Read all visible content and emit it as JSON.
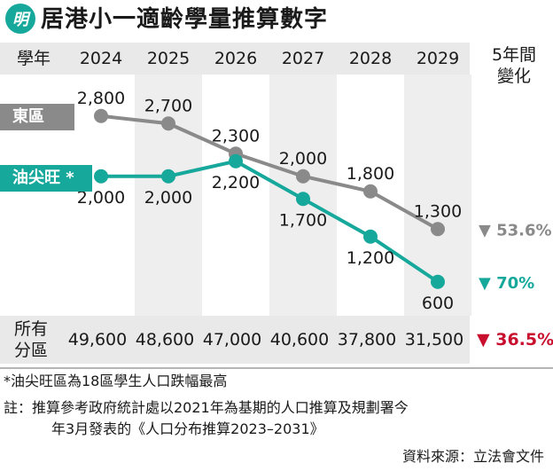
{
  "logo_text": "明",
  "title": "居港小一適齡學量推算數字",
  "header": {
    "row_label": "學年",
    "years": [
      "2024",
      "2025",
      "2026",
      "2027",
      "2028",
      "2029"
    ],
    "change_label": "5年間\n變化"
  },
  "chart_data": {
    "type": "line",
    "categories": [
      "2024",
      "2025",
      "2026",
      "2027",
      "2028",
      "2029"
    ],
    "ylim": [
      0,
      3000
    ],
    "series": [
      {
        "name": "東區",
        "color": "#8a8a8a",
        "values": [
          2800,
          2700,
          2300,
          2000,
          1800,
          1300
        ],
        "labels": [
          "2,800",
          "2,700",
          "2,300",
          "2,000",
          "1,800",
          "1,300"
        ],
        "label_pos": [
          "above",
          "above",
          "above",
          "above",
          "above",
          "above"
        ],
        "change": "▼ 53.6%"
      },
      {
        "name": "油尖旺 *",
        "color": "#17a89c",
        "values": [
          2000,
          2000,
          2200,
          1700,
          1200,
          600
        ],
        "labels": [
          "2,000",
          "2,000",
          "2,200",
          "1,700",
          "1,200",
          "600"
        ],
        "label_pos": [
          "below",
          "below",
          "below",
          "below",
          "below",
          "below"
        ],
        "change": "▼ 70%"
      }
    ]
  },
  "totals": {
    "label": "所有\n分區",
    "values": [
      "49,600",
      "48,600",
      "47,000",
      "40,600",
      "37,800",
      "31,500"
    ],
    "change": "▼ 36.5%"
  },
  "notes": {
    "footnote": "*油尖旺區為18區學生人口跌幅最高",
    "note_line1": "註：推算參考政府統計處以2021年為基期的人口推算及規劃署今",
    "note_line2": "年3月發表的《人口分布推算2023–2031》",
    "source": "資料來源：立法會文件"
  }
}
